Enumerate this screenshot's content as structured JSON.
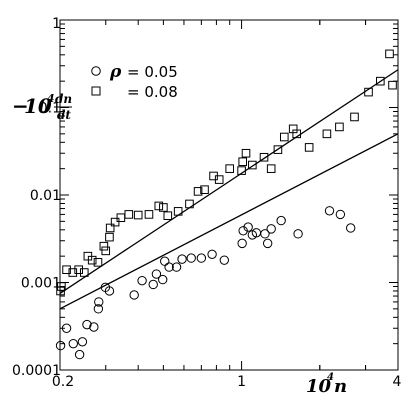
{
  "chart_data": {
    "type": "scatter",
    "title": "",
    "xscale": "log",
    "yscale": "log",
    "xlim": [
      0.2,
      4
    ],
    "ylim": [
      0.0001,
      1
    ],
    "x_ticks": [
      {
        "value": 0.2,
        "label": "0.2"
      },
      {
        "value": 1,
        "label": "1"
      },
      {
        "value": 4,
        "label": "4"
      }
    ],
    "y_ticks": [
      {
        "value": 1,
        "label": "1"
      },
      {
        "value": 0.1,
        "label": "0.1"
      },
      {
        "value": 0.01,
        "label": "0.01"
      },
      {
        "value": 0.001,
        "label": "0.001"
      },
      {
        "value": 0.0001,
        "label": "0.0001"
      }
    ],
    "xlabel": {
      "coef": "10",
      "exp": "4",
      "var": "n"
    },
    "ylabel": {
      "sign": "−",
      "coef": "10",
      "exp": "4",
      "num": "dn",
      "den": "dt"
    },
    "legend": {
      "placement": "top-left",
      "symbol": "ρ",
      "entries": [
        "= 0.05",
        "= 0.08"
      ]
    },
    "series": [
      {
        "name": "= 0.05",
        "marker": "circle",
        "fit": [
          [
            0.2,
            0.0005
          ],
          [
            4,
            0.05
          ]
        ],
        "points": [
          [
            0.201,
            0.00019
          ],
          [
            0.212,
            0.0003
          ],
          [
            0.225,
            0.0002
          ],
          [
            0.238,
            0.00015
          ],
          [
            0.244,
            0.00021
          ],
          [
            0.254,
            0.00033
          ],
          [
            0.27,
            0.00031
          ],
          [
            0.281,
            0.0005
          ],
          [
            0.282,
            0.0006
          ],
          [
            0.299,
            0.00088
          ],
          [
            0.31,
            0.0008
          ],
          [
            0.386,
            0.00072
          ],
          [
            0.414,
            0.00105
          ],
          [
            0.457,
            0.00095
          ],
          [
            0.47,
            0.00125
          ],
          [
            0.497,
            0.00108
          ],
          [
            0.506,
            0.00175
          ],
          [
            0.526,
            0.0015
          ],
          [
            0.562,
            0.0015
          ],
          [
            0.59,
            0.00185
          ],
          [
            0.64,
            0.0019
          ],
          [
            0.7,
            0.0019
          ],
          [
            0.77,
            0.0021
          ],
          [
            0.858,
            0.0018
          ],
          [
            1.005,
            0.0028
          ],
          [
            1.014,
            0.0039
          ],
          [
            1.06,
            0.0043
          ],
          [
            1.1,
            0.0035
          ],
          [
            1.14,
            0.0037
          ],
          [
            1.23,
            0.0036
          ],
          [
            1.26,
            0.0028
          ],
          [
            1.3,
            0.0041
          ],
          [
            1.42,
            0.0051
          ],
          [
            1.65,
            0.0036
          ],
          [
            2.18,
            0.0066
          ],
          [
            2.4,
            0.006
          ],
          [
            2.63,
            0.0042
          ]
        ]
      },
      {
        "name": "= 0.08",
        "marker": "square",
        "fit": [
          [
            0.2,
            0.00075
          ],
          [
            4,
            0.27
          ]
        ],
        "points": [
          [
            0.201,
            0.0008
          ],
          [
            0.2025,
            0.0009
          ],
          [
            0.212,
            0.0014
          ],
          [
            0.224,
            0.0013
          ],
          [
            0.236,
            0.0014
          ],
          [
            0.248,
            0.0013
          ],
          [
            0.256,
            0.002
          ],
          [
            0.266,
            0.0018
          ],
          [
            0.28,
            0.0017
          ],
          [
            0.295,
            0.0026
          ],
          [
            0.3,
            0.0023
          ],
          [
            0.31,
            0.0033
          ],
          [
            0.312,
            0.0042
          ],
          [
            0.326,
            0.0049
          ],
          [
            0.343,
            0.0055
          ],
          [
            0.368,
            0.006
          ],
          [
            0.4,
            0.0059
          ],
          [
            0.44,
            0.006
          ],
          [
            0.48,
            0.0075
          ],
          [
            0.5,
            0.0072
          ],
          [
            0.52,
            0.0058
          ],
          [
            0.57,
            0.0065
          ],
          [
            0.63,
            0.0079
          ],
          [
            0.68,
            0.011
          ],
          [
            0.72,
            0.0115
          ],
          [
            0.78,
            0.0165
          ],
          [
            0.82,
            0.015
          ],
          [
            0.9,
            0.02
          ],
          [
            1.0,
            0.019
          ],
          [
            1.01,
            0.024
          ],
          [
            1.04,
            0.03
          ],
          [
            1.1,
            0.022
          ],
          [
            1.22,
            0.027
          ],
          [
            1.3,
            0.02
          ],
          [
            1.38,
            0.033
          ],
          [
            1.46,
            0.046
          ],
          [
            1.58,
            0.057
          ],
          [
            1.63,
            0.05
          ],
          [
            1.82,
            0.035
          ],
          [
            2.13,
            0.05
          ],
          [
            2.38,
            0.06
          ],
          [
            2.72,
            0.078
          ],
          [
            3.08,
            0.15
          ],
          [
            3.42,
            0.2
          ],
          [
            3.71,
            0.41
          ],
          [
            3.81,
            0.18
          ]
        ]
      }
    ]
  }
}
